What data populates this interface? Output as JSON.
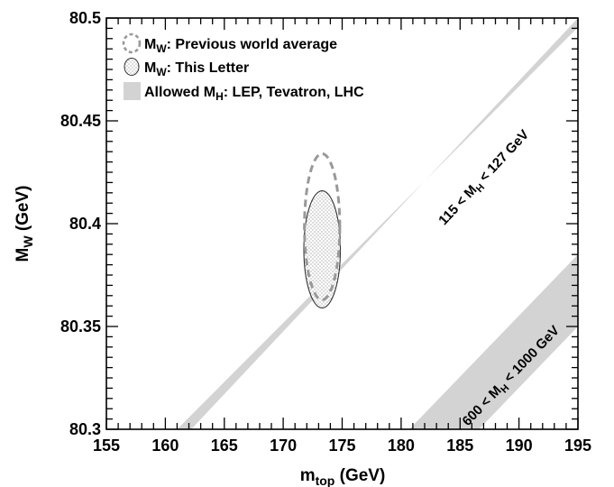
{
  "chart_data": {
    "type": "scatter",
    "xlabel": {
      "main": "m",
      "sub": "top",
      "unit": " (GeV)"
    },
    "ylabel": {
      "main": "M",
      "sub": "W",
      "unit": " (GeV)"
    },
    "xlim": [
      155,
      195
    ],
    "ylim": [
      80.3,
      80.5
    ],
    "xticks": [
      "155",
      "160",
      "165",
      "170",
      "175",
      "180",
      "185",
      "190",
      "195"
    ],
    "yticks": [
      "80.3",
      "80.35",
      "80.4",
      "80.45",
      "80.5"
    ],
    "legend_position": "top-left",
    "legend": [
      {
        "prefix": "M",
        "sub": "W",
        "suffix": ": Previous world average",
        "style": "dashed-ellipse"
      },
      {
        "prefix": "M",
        "sub": "W",
        "suffix": ": This Letter",
        "style": "dotted-ellipse"
      },
      {
        "prefix": "Allowed M",
        "sub": "H",
        "suffix": ": LEP, Tevatron, LHC",
        "style": "gray-band"
      }
    ],
    "bands": [
      {
        "label": {
          "pre": "115 < M",
          "sub": "H",
          "post": " < 127 GeV"
        },
        "lower_edge": [
          [
            161.0,
            80.3
          ],
          [
            195.0,
            80.4955
          ]
        ],
        "upper_edge": [
          [
            162.2,
            80.3
          ],
          [
            195.0,
            80.5
          ]
        ],
        "color": "#d3d3d3"
      },
      {
        "label": {
          "pre": "600 < M",
          "sub": "H",
          "post": " < 1000 GeV"
        },
        "lower_edge": [
          [
            186.6,
            80.3
          ],
          [
            195.0,
            80.35
          ]
        ],
        "upper_edge": [
          [
            180.7,
            80.3
          ],
          [
            195.0,
            80.385
          ]
        ],
        "color": "#d3d3d3"
      }
    ],
    "ellipses": [
      {
        "name": "This Letter",
        "cx": 173.3,
        "cy": 80.3875,
        "rx": 1.55,
        "ry": 0.0285,
        "style": "dotted",
        "stroke": "#333333"
      },
      {
        "name": "Previous world average",
        "cx": 173.3,
        "cy": 80.3985,
        "rx": 1.5,
        "ry": 0.0355,
        "style": "dashed",
        "stroke": "#999999"
      }
    ],
    "grid": false
  }
}
